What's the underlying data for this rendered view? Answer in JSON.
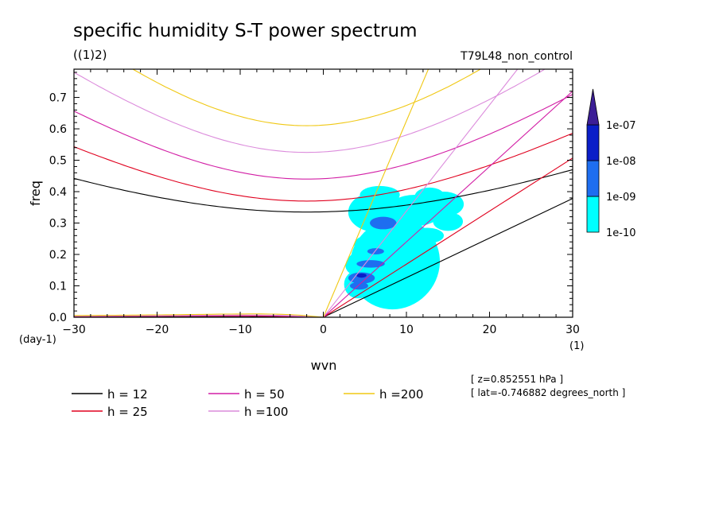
{
  "chart_data": {
    "type": "contour",
    "title": "specific humidity S-T power spectrum",
    "units_label": "((1)2)",
    "experiment": "T79L48_non_control",
    "xlabel": "wvn",
    "ylabel": "freq",
    "x_unit": "(1)",
    "y_unit": "(day-1)",
    "xlim": [
      -30,
      30
    ],
    "ylim": [
      0,
      0.79
    ],
    "xticks": [
      -30,
      -20,
      -10,
      0,
      10,
      20,
      30
    ],
    "yticks": [
      0.0,
      0.1,
      0.2,
      0.3,
      0.4,
      0.5,
      0.6,
      0.7
    ],
    "colorbar": {
      "levels": [
        "1e-10",
        "1e-09",
        "1e-08",
        "1e-07"
      ],
      "colors": [
        "#00ffff",
        "#1e6ef0",
        "#0a1ec8",
        "#3c1e96"
      ]
    },
    "series": [
      {
        "name": "h = 12",
        "h": 12,
        "color": "#000000"
      },
      {
        "name": "h = 25",
        "h": 25,
        "color": "#e0001e"
      },
      {
        "name": "h = 50",
        "h": 50,
        "color": "#d21ea5"
      },
      {
        "name": "h =100",
        "h": 100,
        "color": "#dc8cdc"
      },
      {
        "name": "h =200",
        "h": 200,
        "color": "#f0c814"
      }
    ],
    "annotations": {
      "level": "[ z=0.852551 hPa ]",
      "lat": "[ lat=-0.746882 degrees_north ]"
    }
  }
}
